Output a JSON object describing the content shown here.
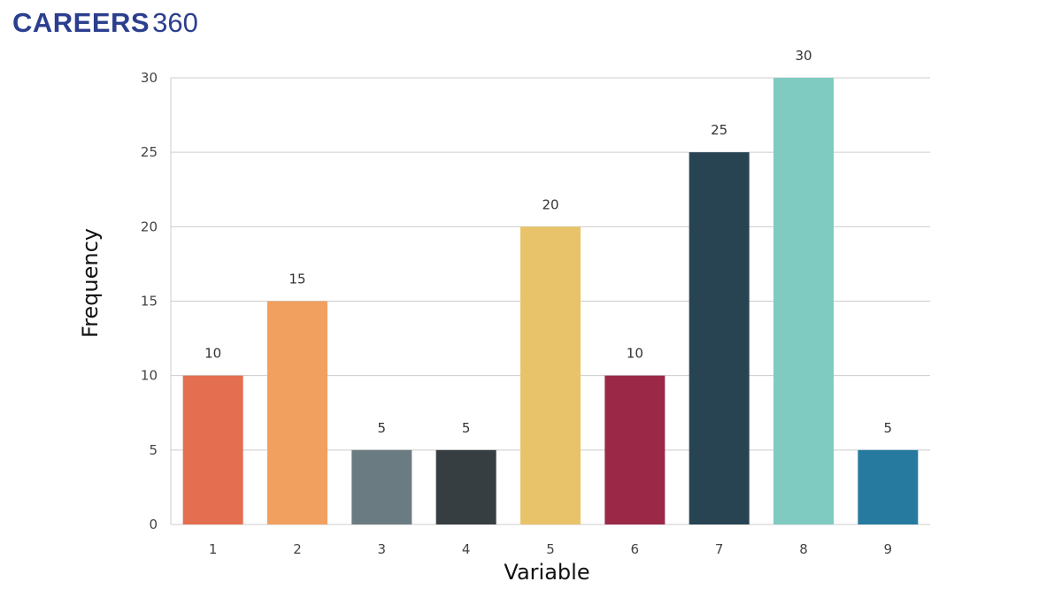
{
  "logo": {
    "text_bold": "CAREERS",
    "text_num": "360",
    "color_bold": "#2b3f8e",
    "color_num": "#2b3f8e"
  },
  "chart_data": {
    "type": "bar",
    "categories": [
      "1",
      "2",
      "3",
      "4",
      "5",
      "6",
      "7",
      "8",
      "9"
    ],
    "values": [
      10,
      15,
      5,
      5,
      20,
      10,
      25,
      30,
      5
    ],
    "colors": [
      "#e46e50",
      "#f2a05f",
      "#6b7b82",
      "#373e42",
      "#e8c36a",
      "#9b2847",
      "#284452",
      "#7fcbc2",
      "#267a9f"
    ],
    "xlabel": "Variable",
    "ylabel": "Frequency",
    "ylim": [
      0,
      30
    ],
    "yticks": [
      0,
      5,
      10,
      15,
      20,
      25,
      30
    ],
    "grid": true,
    "data_labels": true,
    "gridline_color": "#cccccc"
  }
}
